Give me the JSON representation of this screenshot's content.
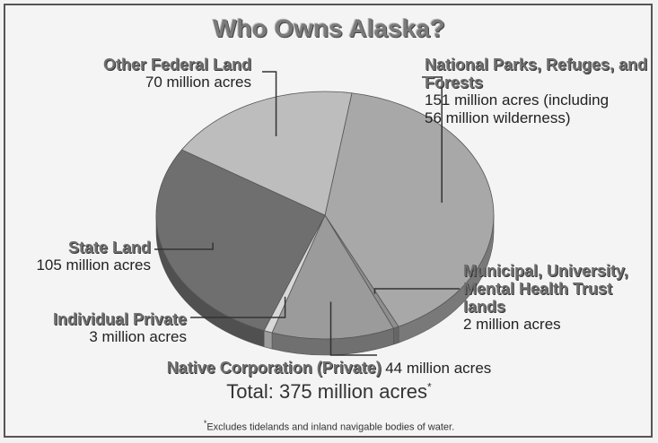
{
  "chart_data": {
    "type": "pie",
    "title": "Who Owns Alaska?",
    "unit": "million acres",
    "slices": [
      {
        "name": "National Parks, Refuges, and Forests",
        "value": 151,
        "value_label": "151 million acres (including",
        "value_label2": "56 million wilderness)",
        "color": "#a8a8a8"
      },
      {
        "name": "Municipal, University, Mental Health Trust lands",
        "value": 2,
        "value_label": "2 million acres",
        "color": "#8e8e8e"
      },
      {
        "name": "Native Corporation (Private)",
        "value": 44,
        "value_label": "44 million acres",
        "color": "#9b9b9b"
      },
      {
        "name": "Individual Private",
        "value": 3,
        "value_label": "3 million acres",
        "color": "#d8d8d8"
      },
      {
        "name": "State Land",
        "value": 105,
        "value_label": "105 million acres",
        "color": "#6f6f6f"
      },
      {
        "name": "Other Federal Land",
        "value": 70,
        "value_label": "70 million acres",
        "color": "#bdbdbd"
      }
    ],
    "total": "Total: 375 million acres",
    "total_mark": "*",
    "footnote_mark": "*",
    "footnote": "Excludes tidelands and inland navigable bodies of water."
  }
}
